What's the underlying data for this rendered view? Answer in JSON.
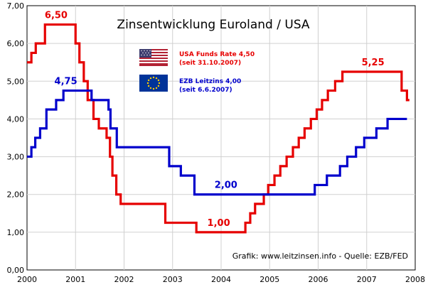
{
  "chart_data": {
    "type": "line",
    "title": "Zinsentwicklung Euroland / USA",
    "x_ticks": [
      "2000",
      "2001",
      "2002",
      "2003",
      "2004",
      "2005",
      "2006",
      "2007",
      "2008"
    ],
    "y_ticks": [
      "0,00",
      "1,00",
      "2,00",
      "3,00",
      "4,00",
      "5,00",
      "6,00",
      "7,00"
    ],
    "xlim": [
      2000,
      2008
    ],
    "ylim": [
      0,
      7
    ],
    "legend": [
      {
        "name": "USA Funds Rate 4,50",
        "note": "(seit 31.10.2007)",
        "color": "#e60000",
        "flag": "us-flag"
      },
      {
        "name": "EZB Leitzins 4,00",
        "note": "(seit 6.6.2007)",
        "color": "#0000cc",
        "flag": "eu-flag"
      }
    ],
    "series": [
      {
        "name": "USA Funds Rate",
        "color": "#e60000",
        "step": [
          [
            2000.0,
            5.5
          ],
          [
            2000.09,
            5.75
          ],
          [
            2000.18,
            6.0
          ],
          [
            2000.37,
            6.5
          ],
          [
            2001.0,
            6.0
          ],
          [
            2001.08,
            5.5
          ],
          [
            2001.17,
            5.0
          ],
          [
            2001.25,
            4.5
          ],
          [
            2001.37,
            4.0
          ],
          [
            2001.48,
            3.75
          ],
          [
            2001.64,
            3.5
          ],
          [
            2001.71,
            3.0
          ],
          [
            2001.76,
            2.5
          ],
          [
            2001.84,
            2.0
          ],
          [
            2001.93,
            1.75
          ],
          [
            2002.85,
            1.25
          ],
          [
            2003.49,
            1.0
          ],
          [
            2004.5,
            1.25
          ],
          [
            2004.6,
            1.5
          ],
          [
            2004.7,
            1.75
          ],
          [
            2004.88,
            2.0
          ],
          [
            2004.97,
            2.25
          ],
          [
            2005.1,
            2.5
          ],
          [
            2005.22,
            2.75
          ],
          [
            2005.35,
            3.0
          ],
          [
            2005.48,
            3.25
          ],
          [
            2005.6,
            3.5
          ],
          [
            2005.72,
            3.75
          ],
          [
            2005.85,
            4.0
          ],
          [
            2005.97,
            4.25
          ],
          [
            2006.08,
            4.5
          ],
          [
            2006.2,
            4.75
          ],
          [
            2006.35,
            5.0
          ],
          [
            2006.5,
            5.25
          ],
          [
            2007.72,
            4.75
          ],
          [
            2007.83,
            4.5
          ]
        ],
        "x_end": 2007.88,
        "labels": [
          {
            "text": "6,50",
            "x": 2000.6,
            "y": 6.5
          },
          {
            "text": "1,00",
            "x": 2003.95,
            "y": 1.0
          },
          {
            "text": "5,25",
            "x": 2007.13,
            "y": 5.25
          }
        ]
      },
      {
        "name": "EZB Leitzins",
        "color": "#0000cc",
        "step": [
          [
            2000.0,
            3.0
          ],
          [
            2000.09,
            3.25
          ],
          [
            2000.17,
            3.5
          ],
          [
            2000.27,
            3.75
          ],
          [
            2000.4,
            4.25
          ],
          [
            2000.6,
            4.5
          ],
          [
            2000.75,
            4.75
          ],
          [
            2001.33,
            4.5
          ],
          [
            2001.68,
            4.25
          ],
          [
            2001.72,
            3.75
          ],
          [
            2001.85,
            3.25
          ],
          [
            2002.93,
            2.75
          ],
          [
            2003.17,
            2.5
          ],
          [
            2003.45,
            2.0
          ],
          [
            2005.93,
            2.25
          ],
          [
            2006.18,
            2.5
          ],
          [
            2006.45,
            2.75
          ],
          [
            2006.6,
            3.0
          ],
          [
            2006.78,
            3.25
          ],
          [
            2006.95,
            3.5
          ],
          [
            2007.2,
            3.75
          ],
          [
            2007.43,
            4.0
          ]
        ],
        "x_end": 2007.83,
        "labels": [
          {
            "text": "4,75",
            "x": 2000.8,
            "y": 4.75
          },
          {
            "text": "2,00",
            "x": 2004.1,
            "y": 2.0
          }
        ]
      }
    ],
    "annotation": "Grafik: www.leitzinsen.info - Quelle: EZB/FED",
    "grid": true
  }
}
